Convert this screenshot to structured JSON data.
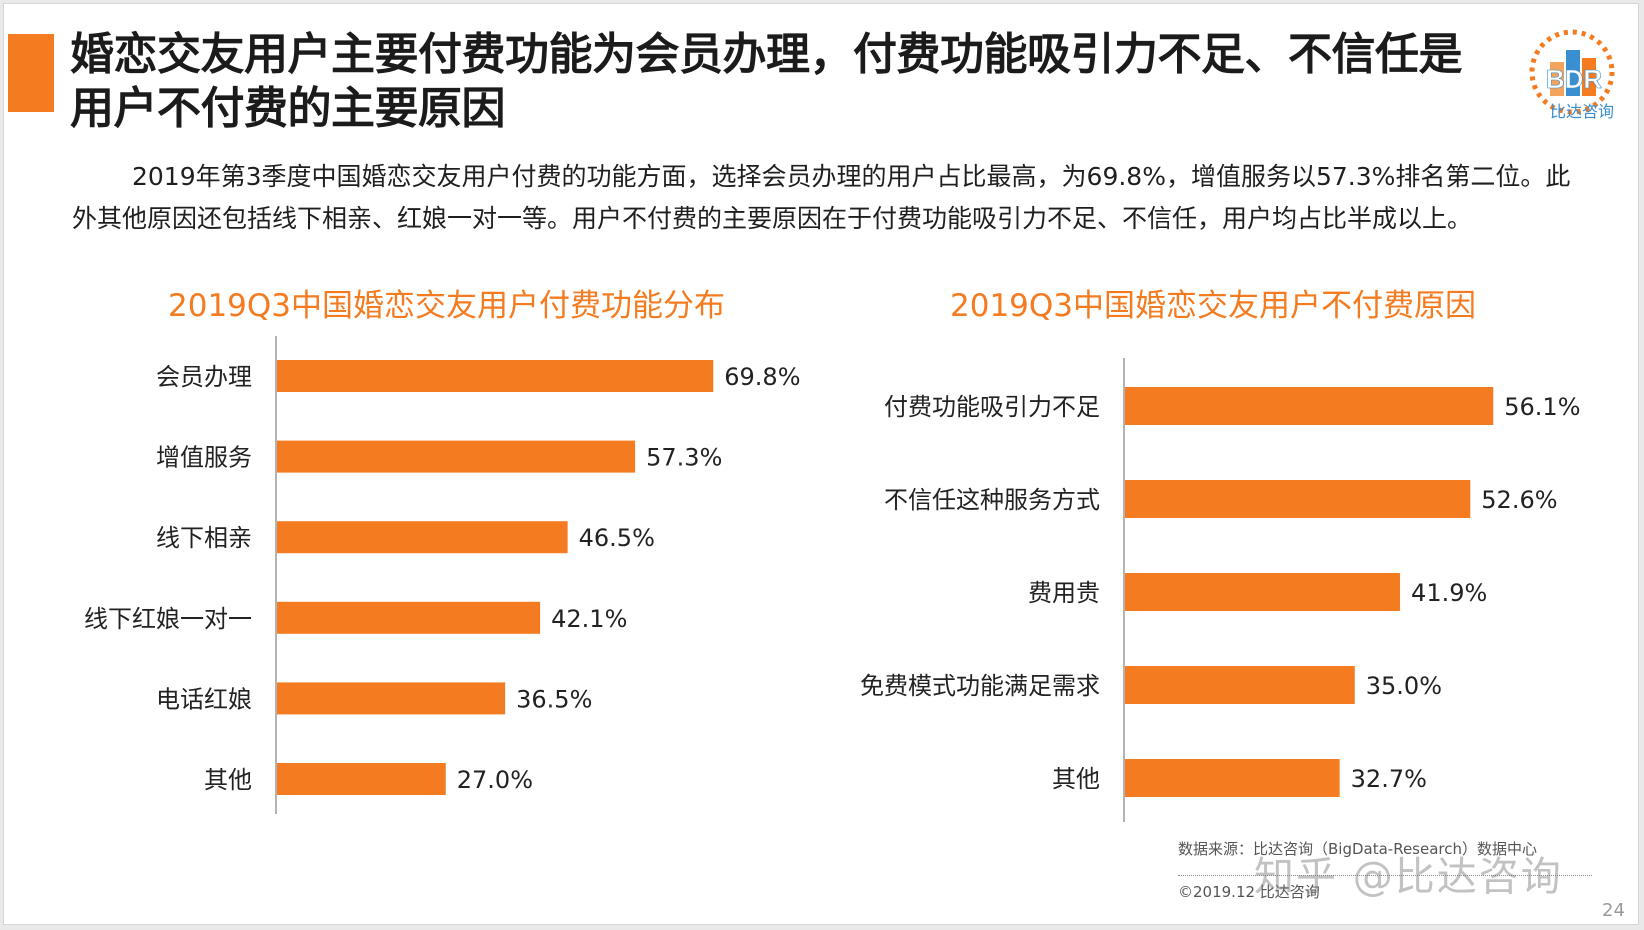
{
  "slide": {
    "title": "婚恋交友用户主要付费功能为会员办理，付费功能吸引力不足、不信任是用户不付费的主要原因",
    "paragraph": "2019年第3季度中国婚恋交友用户付费的功能方面，选择会员办理的用户占比最高，为69.8%，增值服务以57.3%排名第二位。此外其他原因还包括线下相亲、红娘一对一等。用户不付费的主要原因在于付费功能吸引力不足、不信任，用户均占比半成以上。",
    "logo_letters": "BDR",
    "logo_name": "比达咨询",
    "source": "数据来源：比达咨询（BigData-Research）数据中心",
    "copyright": "©2019.12 比达咨询",
    "page_number": "24",
    "watermark": "知乎 @比达咨询"
  },
  "colors": {
    "accent": "#f47b20",
    "bar": "#f47b20",
    "title_orange": "#f47b20",
    "axis": "#9a9a9a",
    "logo_blue": "#3a8fd1"
  },
  "chart_data": [
    {
      "type": "bar",
      "orientation": "horizontal",
      "title": "2019Q3中国婚恋交友用户付费功能分布",
      "categories": [
        "会员办理",
        "增值服务",
        "线下相亲",
        "线下红娘一对一",
        "电话红娘",
        "其他"
      ],
      "values": [
        69.8,
        57.3,
        46.5,
        42.1,
        36.5,
        27.0
      ],
      "data_labels": [
        "69.8%",
        "57.3%",
        "46.5%",
        "42.1%",
        "36.5%",
        "27.0%"
      ],
      "unit": "%",
      "xlim": [
        0,
        80
      ]
    },
    {
      "type": "bar",
      "orientation": "horizontal",
      "title": "2019Q3中国婚恋交友用户不付费原因",
      "categories": [
        "付费功能吸引力不足",
        "不信任这种服务方式",
        "费用贵",
        "免费模式功能满足需求",
        "其他"
      ],
      "values": [
        56.1,
        52.6,
        41.9,
        35.0,
        32.7
      ],
      "data_labels": [
        "56.1%",
        "52.6%",
        "41.9%",
        "35.0%",
        "32.7%"
      ],
      "unit": "%",
      "xlim": [
        0,
        62
      ]
    }
  ]
}
